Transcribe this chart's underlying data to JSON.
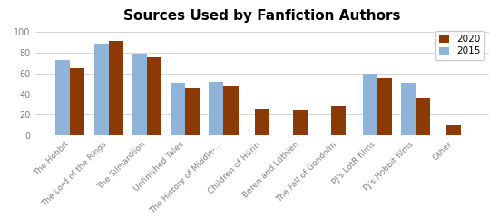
{
  "title": "Sources Used by Fanfiction Authors",
  "categories": [
    "The Hobbit",
    "The Lord of the Rings",
    "The Silmarillion",
    "Unfinished Tales",
    "The History of Middle-...",
    "Children of Húrin",
    "Beren and Lúthien",
    "The Fall of Gondolin",
    "PJ's LotR films",
    "PJ's Hobbit films",
    "Other"
  ],
  "values_2015": [
    73,
    88,
    79,
    51,
    52,
    0,
    0,
    0,
    60,
    51,
    0
  ],
  "values_2020": [
    65,
    91,
    75,
    46,
    47,
    26,
    25,
    28,
    55,
    36,
    10
  ],
  "color_2015": "#8EB4D9",
  "color_2020": "#8B3A05",
  "ylim": [
    0,
    105
  ],
  "yticks": [
    0,
    20,
    40,
    60,
    80,
    100
  ],
  "legend_labels": [
    "2015",
    "2020"
  ],
  "bar_width": 0.38,
  "title_fontsize": 11,
  "tick_fontsize": 6.5,
  "ylabel_fontsize": 8
}
